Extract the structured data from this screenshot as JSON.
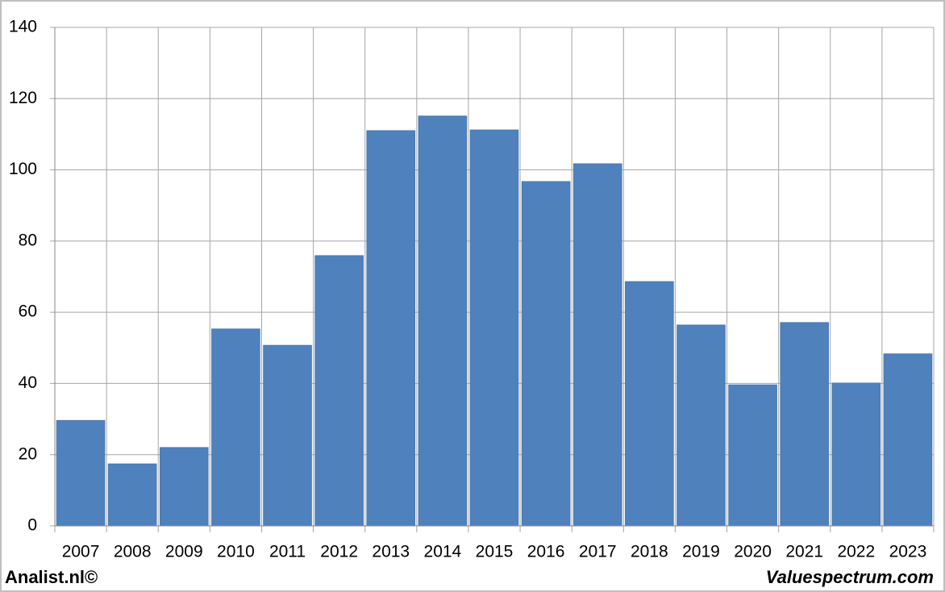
{
  "chart_data": {
    "type": "bar",
    "categories": [
      "2007",
      "2008",
      "2009",
      "2010",
      "2011",
      "2012",
      "2013",
      "2014",
      "2015",
      "2016",
      "2017",
      "2018",
      "2019",
      "2020",
      "2021",
      "2022",
      "2023"
    ],
    "values": [
      29.6,
      17.4,
      22.0,
      55.3,
      50.7,
      75.9,
      111.0,
      115.1,
      111.2,
      96.7,
      101.7,
      68.6,
      56.4,
      39.6,
      57.1,
      40.1,
      48.3
    ],
    "color": "#4f81bd",
    "ylim": [
      0,
      140
    ],
    "yticks": [
      0,
      20,
      40,
      60,
      80,
      100,
      120,
      140
    ],
    "grid": true,
    "source_left": "Analist.nl©",
    "source_right": "Valuespectrum.com"
  }
}
